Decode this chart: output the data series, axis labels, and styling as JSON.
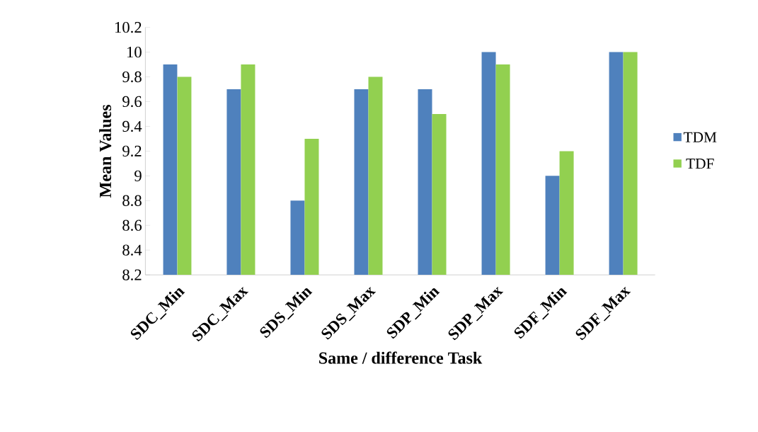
{
  "chart_data": {
    "type": "bar",
    "xlabel": "Same / difference Task",
    "ylabel": "Mean Values",
    "categories": [
      "SDC_Min",
      "SDC_Max",
      "SDS_Min",
      "SDS_Max",
      "SDP_Min",
      "SDP_Max",
      "SDF_Min",
      "SDF_Max"
    ],
    "series": [
      {
        "name": "TDM",
        "color": "#4f81bd",
        "values": [
          9.9,
          9.7,
          8.8,
          9.7,
          9.7,
          10,
          9.0,
          10
        ]
      },
      {
        "name": "TDF",
        "color": "#92d050",
        "values": [
          9.8,
          9.9,
          9.3,
          9.8,
          9.5,
          9.9,
          9.2,
          10
        ]
      }
    ],
    "ylim": [
      8.2,
      10.2
    ],
    "yticks": [
      8.2,
      8.4,
      8.6,
      8.8,
      9,
      9.2,
      9.4,
      9.6,
      9.8,
      10,
      10.2
    ],
    "grid": false,
    "legend": "right"
  }
}
